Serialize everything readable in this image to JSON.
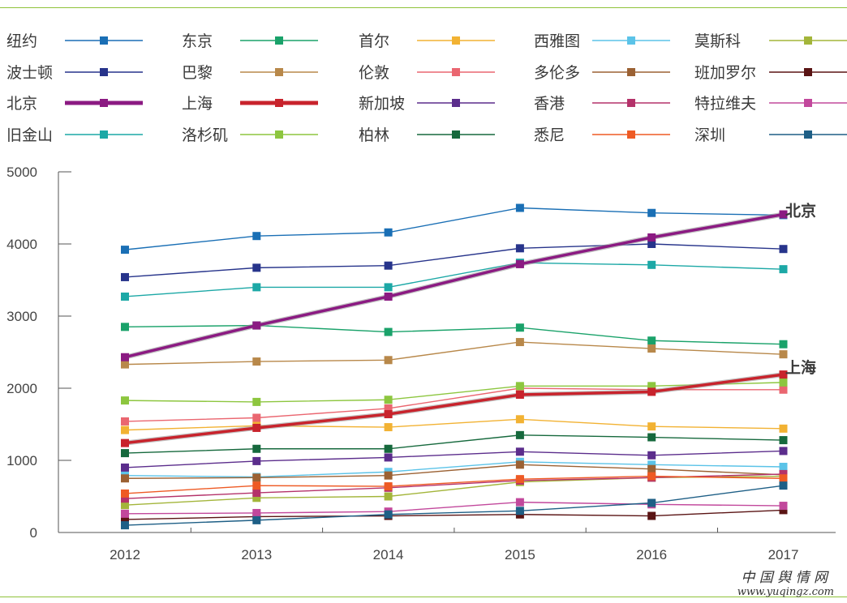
{
  "chart_data": {
    "type": "line",
    "x": [
      "2012",
      "2013",
      "2014",
      "2015",
      "2016",
      "2017"
    ],
    "ylim": [
      0,
      5000
    ],
    "yticks": [
      "0",
      "1000",
      "2000",
      "3000",
      "4000",
      "5000"
    ],
    "grid": false,
    "legend_position": "top",
    "end_labels": [
      "北京",
      "上海"
    ],
    "series": [
      {
        "name": "纽约",
        "color": "#1a6fb5",
        "values": [
          3920,
          4110,
          4160,
          4500,
          4430,
          4400
        ]
      },
      {
        "name": "东京",
        "color": "#1aa26a",
        "values": [
          2850,
          2870,
          2780,
          2840,
          2660,
          2610
        ]
      },
      {
        "name": "首尔",
        "color": "#f2b233",
        "values": [
          1420,
          1480,
          1460,
          1570,
          1470,
          1440
        ]
      },
      {
        "name": "西雅图",
        "color": "#5bc3e8",
        "values": [
          790,
          770,
          840,
          980,
          940,
          910
        ]
      },
      {
        "name": "莫斯科",
        "color": "#a3b53a",
        "values": [
          380,
          480,
          500,
          700,
          760,
          780
        ]
      },
      {
        "name": "波士顿",
        "color": "#27348b",
        "values": [
          3540,
          3670,
          3700,
          3940,
          4000,
          3930
        ]
      },
      {
        "name": "巴黎",
        "color": "#b8884a",
        "values": [
          2330,
          2370,
          2390,
          2640,
          2550,
          2470
        ]
      },
      {
        "name": "伦敦",
        "color": "#ea6670",
        "values": [
          1540,
          1590,
          1720,
          2000,
          1980,
          1980
        ]
      },
      {
        "name": "多伦多",
        "color": "#9b6133",
        "values": [
          750,
          760,
          790,
          940,
          880,
          800
        ]
      },
      {
        "name": "班加罗尔",
        "color": "#5a1414",
        "values": [
          180,
          220,
          230,
          250,
          230,
          310
        ]
      },
      {
        "name": "北京",
        "color": "#8b1a82",
        "values": [
          2430,
          2870,
          3270,
          3720,
          4090,
          4410
        ]
      },
      {
        "name": "上海",
        "color": "#c8232c",
        "values": [
          1240,
          1450,
          1640,
          1910,
          1950,
          2190
        ]
      },
      {
        "name": "新加坡",
        "color": "#5b2d8c",
        "values": [
          900,
          990,
          1040,
          1120,
          1070,
          1130
        ]
      },
      {
        "name": "香港",
        "color": "#b4326a",
        "values": [
          470,
          550,
          620,
          720,
          760,
          810
        ]
      },
      {
        "name": "特拉维夫",
        "color": "#c2489c",
        "values": [
          260,
          270,
          290,
          420,
          390,
          370
        ]
      },
      {
        "name": "旧金山",
        "color": "#1ca8a6",
        "values": [
          3270,
          3400,
          3400,
          3740,
          3710,
          3650
        ]
      },
      {
        "name": "洛杉矶",
        "color": "#8dc63f",
        "values": [
          1830,
          1810,
          1840,
          2030,
          2030,
          2080
        ]
      },
      {
        "name": "柏林",
        "color": "#16693d",
        "values": [
          1100,
          1160,
          1160,
          1350,
          1320,
          1280
        ]
      },
      {
        "name": "悉尼",
        "color": "#ee5a24",
        "values": [
          540,
          650,
          640,
          740,
          780,
          750
        ]
      },
      {
        "name": "深圳",
        "color": "#1e5f86",
        "values": [
          100,
          170,
          250,
          300,
          410,
          650
        ]
      }
    ]
  },
  "watermark": {
    "chinese": "中 国 舆 情 网",
    "url": "www.yuqingz.com"
  }
}
